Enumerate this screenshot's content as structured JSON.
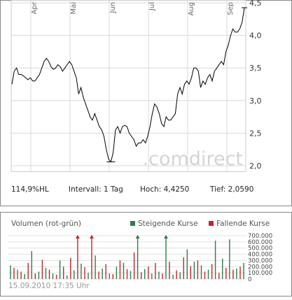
{
  "chart_data": [
    {
      "type": "line",
      "x_tick_labels": [
        "Apr",
        "Mai",
        "Jun",
        "Jul",
        "Aug",
        "Sep"
      ],
      "y_ticks": [
        2.0,
        2.5,
        3.0,
        3.5,
        4.0,
        4.5
      ],
      "y_tick_labels": [
        "2,0",
        "2,5",
        "3,0",
        "3,5",
        "4,0",
        "4,5"
      ],
      "ylim": [
        2.0,
        4.5
      ],
      "grid": true,
      "watermark": ".comdirect",
      "series": [
        {
          "values": [
            3.25,
            3.45,
            3.5,
            3.4,
            3.4,
            3.38,
            3.35,
            3.32,
            3.35,
            3.3,
            3.3,
            3.35,
            3.4,
            3.5,
            3.6,
            3.65,
            3.6,
            3.52,
            3.48,
            3.5,
            3.55,
            3.52,
            3.45,
            3.5,
            3.55,
            3.6,
            3.55,
            3.45,
            3.35,
            3.1,
            3.2,
            3.05,
            2.95,
            2.85,
            2.75,
            2.7,
            2.8,
            2.7,
            2.6,
            2.55,
            2.45,
            2.25,
            2.1,
            2.06,
            2.2,
            2.55,
            2.6,
            2.5,
            2.6,
            2.62,
            2.6,
            2.5,
            2.45,
            2.4,
            2.3,
            2.35,
            2.35,
            2.4,
            2.35,
            2.45,
            2.6,
            2.8,
            2.95,
            2.9,
            2.8,
            2.65,
            2.6,
            2.75,
            2.7,
            2.7,
            2.75,
            2.8,
            3.1,
            3.2,
            3.1,
            3.25,
            3.3,
            3.25,
            3.35,
            3.5,
            3.5,
            3.45,
            3.2,
            3.3,
            3.25,
            3.35,
            3.4,
            3.3,
            3.45,
            3.5,
            3.55,
            3.6,
            3.55,
            3.75,
            3.85,
            4.0,
            4.1,
            4.05,
            4.05,
            4.1,
            4.2,
            4.425
          ]
        }
      ]
    },
    {
      "type": "bar",
      "title": "Volumen (rot-grün)",
      "y_ticks": [
        0,
        100000,
        200000,
        300000,
        400000,
        500000,
        600000,
        700000
      ],
      "y_tick_labels": [
        "0",
        "100.000",
        "200.000",
        "300.000",
        "400.000",
        "500.000",
        "600.000",
        "700.000"
      ],
      "ylim": [
        0,
        700000
      ],
      "series": [
        {
          "name": "Steigende Kurse",
          "color": "#2e7d4f",
          "values": [
            220000,
            150000,
            80000,
            450000,
            120000,
            180000,
            90000,
            300000,
            60000,
            140000,
            250000,
            100000,
            380000,
            170000,
            90000,
            200000,
            260000,
            130000,
            700000,
            160000,
            90000,
            120000,
            700000,
            70000,
            110000,
            480000,
            280000,
            220000,
            150000,
            620000,
            330000,
            640000,
            170000,
            260000
          ]
        },
        {
          "name": "Fallende Kurse",
          "color": "#cc2222",
          "values": [
            180000,
            120000,
            260000,
            90000,
            310000,
            150000,
            70000,
            200000,
            340000,
            700000,
            190000,
            700000,
            120000,
            240000,
            80000,
            300000,
            160000,
            430000,
            110000,
            200000,
            260000,
            90000,
            280000,
            140000,
            350000,
            210000,
            300000,
            120000,
            240000,
            100000,
            180000,
            150000,
            200000
          ]
        }
      ]
    }
  ],
  "stats": {
    "range": "114,9%HL",
    "interval": "Intervall: 1 Tag",
    "high": "Hoch: 4,4250",
    "low": "Tief: 2,0590"
  },
  "volume_legend": {
    "title": "Volumen (rot-grün)",
    "rising": "Steigende Kurse",
    "falling": "Fallende Kurse"
  },
  "timestamp": "15.09.2010 17:35 Uhr"
}
